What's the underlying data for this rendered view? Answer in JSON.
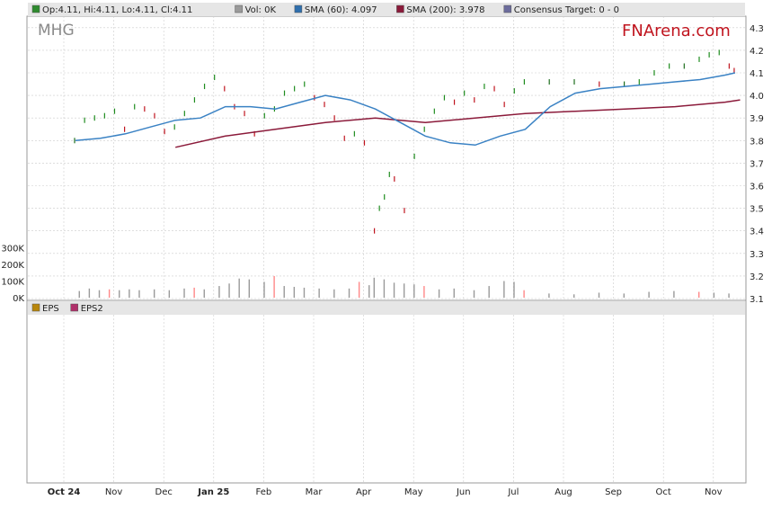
{
  "ticker": "MHG",
  "brand": "FNArena.com",
  "legend_top": [
    {
      "label": "Op:4.11, Hi:4.11, Lo:4.11, Cl:4.11",
      "color": "#2e8b2e"
    },
    {
      "label": "Vol: 0K",
      "color": "#9a9a9a"
    },
    {
      "label": "SMA (60): 4.097",
      "color": "#2f6fad"
    },
    {
      "label": "SMA (200): 3.978",
      "color": "#8b1a3a"
    },
    {
      "label": "Consensus Target: 0 - 0",
      "color": "#6c6c9c"
    }
  ],
  "legend_bottom": [
    {
      "label": "EPS",
      "color": "#b8860b"
    },
    {
      "label": "EPS2",
      "color": "#b0306a"
    }
  ],
  "colors": {
    "up": "#1e8c1e",
    "down": "#c0141e",
    "flat": "#1e6e1e",
    "sma60": "#3a82c4",
    "sma200": "#8b1a3a",
    "grid": "#cccccc",
    "legend_bg": "#e6e6e6",
    "brand": "#c0141e",
    "volume": "#9a9a9a"
  },
  "chart_data": {
    "type": "ohlc",
    "ticker": "MHG",
    "x_tick_labels": [
      "Oct 24",
      "Nov",
      "Dec",
      "Jan 25",
      "Feb",
      "Mar",
      "Apr",
      "May",
      "Jun",
      "Jul",
      "Aug",
      "Sep",
      "Oct",
      "Nov"
    ],
    "bold_ticks": [
      "Oct 24",
      "Jan 25"
    ],
    "y_price": {
      "min": 3.1,
      "max": 4.3,
      "ticks": [
        "4.3",
        "4.2",
        "4.1",
        "4.0",
        "3.9",
        "3.8",
        "3.7",
        "3.6",
        "3.5",
        "3.4",
        "3.3",
        "3.2",
        "3.1"
      ]
    },
    "y_volume": {
      "min": 0,
      "max": 300000,
      "ticks": [
        "300K",
        "200K",
        "100K",
        "0K"
      ]
    },
    "price_series": [
      {
        "m": 0.0,
        "v": 3.8
      },
      {
        "m": 0.2,
        "v": 3.89
      },
      {
        "m": 0.4,
        "v": 3.9
      },
      {
        "m": 0.6,
        "v": 3.91
      },
      {
        "m": 0.8,
        "v": 3.93
      },
      {
        "m": 1.0,
        "v": 3.85
      },
      {
        "m": 1.2,
        "v": 3.95
      },
      {
        "m": 1.4,
        "v": 3.94
      },
      {
        "m": 1.6,
        "v": 3.91
      },
      {
        "m": 1.8,
        "v": 3.84
      },
      {
        "m": 2.0,
        "v": 3.86
      },
      {
        "m": 2.2,
        "v": 3.92
      },
      {
        "m": 2.4,
        "v": 3.98
      },
      {
        "m": 2.6,
        "v": 4.04
      },
      {
        "m": 2.8,
        "v": 4.08
      },
      {
        "m": 3.0,
        "v": 4.03
      },
      {
        "m": 3.2,
        "v": 3.95
      },
      {
        "m": 3.4,
        "v": 3.92
      },
      {
        "m": 3.6,
        "v": 3.83
      },
      {
        "m": 3.8,
        "v": 3.91
      },
      {
        "m": 4.0,
        "v": 3.94
      },
      {
        "m": 4.2,
        "v": 4.01
      },
      {
        "m": 4.4,
        "v": 4.03
      },
      {
        "m": 4.6,
        "v": 4.05
      },
      {
        "m": 4.8,
        "v": 3.99
      },
      {
        "m": 5.0,
        "v": 3.96
      },
      {
        "m": 5.2,
        "v": 3.9
      },
      {
        "m": 5.4,
        "v": 3.81
      },
      {
        "m": 5.6,
        "v": 3.83
      },
      {
        "m": 5.8,
        "v": 3.79
      },
      {
        "m": 6.0,
        "v": 3.4
      },
      {
        "m": 6.1,
        "v": 3.5
      },
      {
        "m": 6.2,
        "v": 3.55
      },
      {
        "m": 6.3,
        "v": 3.65
      },
      {
        "m": 6.4,
        "v": 3.63
      },
      {
        "m": 6.6,
        "v": 3.49
      },
      {
        "m": 6.8,
        "v": 3.73
      },
      {
        "m": 7.0,
        "v": 3.85
      },
      {
        "m": 7.2,
        "v": 3.93
      },
      {
        "m": 7.4,
        "v": 3.99
      },
      {
        "m": 7.6,
        "v": 3.97
      },
      {
        "m": 7.8,
        "v": 4.01
      },
      {
        "m": 8.0,
        "v": 3.98
      },
      {
        "m": 8.2,
        "v": 4.04
      },
      {
        "m": 8.4,
        "v": 4.03
      },
      {
        "m": 8.6,
        "v": 3.96
      },
      {
        "m": 8.8,
        "v": 4.02
      },
      {
        "m": 9.0,
        "v": 4.06
      },
      {
        "m": 9.5,
        "v": 4.06
      },
      {
        "m": 10.0,
        "v": 4.06
      },
      {
        "m": 10.5,
        "v": 4.05
      },
      {
        "m": 11.0,
        "v": 4.05
      },
      {
        "m": 11.3,
        "v": 4.06
      },
      {
        "m": 11.6,
        "v": 4.1
      },
      {
        "m": 11.9,
        "v": 4.13
      },
      {
        "m": 12.2,
        "v": 4.13
      },
      {
        "m": 12.5,
        "v": 4.16
      },
      {
        "m": 12.7,
        "v": 4.18
      },
      {
        "m": 12.9,
        "v": 4.19
      },
      {
        "m": 13.1,
        "v": 4.13
      },
      {
        "m": 13.2,
        "v": 4.11
      }
    ],
    "sma60": [
      {
        "m": 0.0,
        "v": 3.8
      },
      {
        "m": 0.5,
        "v": 3.81
      },
      {
        "m": 1.0,
        "v": 3.83
      },
      {
        "m": 1.5,
        "v": 3.86
      },
      {
        "m": 2.0,
        "v": 3.89
      },
      {
        "m": 2.5,
        "v": 3.9
      },
      {
        "m": 3.0,
        "v": 3.95
      },
      {
        "m": 3.5,
        "v": 3.95
      },
      {
        "m": 4.0,
        "v": 3.94
      },
      {
        "m": 4.5,
        "v": 3.97
      },
      {
        "m": 5.0,
        "v": 4.0
      },
      {
        "m": 5.5,
        "v": 3.98
      },
      {
        "m": 6.0,
        "v": 3.94
      },
      {
        "m": 6.5,
        "v": 3.88
      },
      {
        "m": 7.0,
        "v": 3.82
      },
      {
        "m": 7.5,
        "v": 3.79
      },
      {
        "m": 8.0,
        "v": 3.78
      },
      {
        "m": 8.5,
        "v": 3.82
      },
      {
        "m": 9.0,
        "v": 3.85
      },
      {
        "m": 9.5,
        "v": 3.95
      },
      {
        "m": 10.0,
        "v": 4.01
      },
      {
        "m": 10.5,
        "v": 4.03
      },
      {
        "m": 11.0,
        "v": 4.04
      },
      {
        "m": 11.5,
        "v": 4.05
      },
      {
        "m": 12.0,
        "v": 4.06
      },
      {
        "m": 12.5,
        "v": 4.07
      },
      {
        "m": 13.0,
        "v": 4.09
      },
      {
        "m": 13.2,
        "v": 4.1
      }
    ],
    "sma200": [
      {
        "m": 2.0,
        "v": 3.77
      },
      {
        "m": 3.0,
        "v": 3.82
      },
      {
        "m": 4.0,
        "v": 3.85
      },
      {
        "m": 5.0,
        "v": 3.88
      },
      {
        "m": 6.0,
        "v": 3.9
      },
      {
        "m": 7.0,
        "v": 3.88
      },
      {
        "m": 8.0,
        "v": 3.9
      },
      {
        "m": 9.0,
        "v": 3.92
      },
      {
        "m": 10.0,
        "v": 3.93
      },
      {
        "m": 11.0,
        "v": 3.94
      },
      {
        "m": 12.0,
        "v": 3.95
      },
      {
        "m": 13.0,
        "v": 3.97
      },
      {
        "m": 13.3,
        "v": 3.98
      }
    ],
    "volume": [
      {
        "m": 0.1,
        "v": 40000
      },
      {
        "m": 0.3,
        "v": 55000
      },
      {
        "m": 0.5,
        "v": 45000
      },
      {
        "m": 0.7,
        "v": 50000
      },
      {
        "m": 0.9,
        "v": 45000
      },
      {
        "m": 1.1,
        "v": 50000
      },
      {
        "m": 1.3,
        "v": 45000
      },
      {
        "m": 1.6,
        "v": 50000
      },
      {
        "m": 1.9,
        "v": 45000
      },
      {
        "m": 2.2,
        "v": 55000
      },
      {
        "m": 2.4,
        "v": 60000
      },
      {
        "m": 2.6,
        "v": 50000
      },
      {
        "m": 2.9,
        "v": 70000
      },
      {
        "m": 3.1,
        "v": 85000
      },
      {
        "m": 3.3,
        "v": 115000
      },
      {
        "m": 3.5,
        "v": 110000
      },
      {
        "m": 3.8,
        "v": 95000
      },
      {
        "m": 4.0,
        "v": 130000
      },
      {
        "m": 4.2,
        "v": 70000
      },
      {
        "m": 4.4,
        "v": 65000
      },
      {
        "m": 4.6,
        "v": 60000
      },
      {
        "m": 4.9,
        "v": 55000
      },
      {
        "m": 5.2,
        "v": 50000
      },
      {
        "m": 5.5,
        "v": 55000
      },
      {
        "m": 5.7,
        "v": 95000
      },
      {
        "m": 5.9,
        "v": 75000
      },
      {
        "m": 6.0,
        "v": 120000
      },
      {
        "m": 6.2,
        "v": 110000
      },
      {
        "m": 6.4,
        "v": 90000
      },
      {
        "m": 6.6,
        "v": 85000
      },
      {
        "m": 6.8,
        "v": 80000
      },
      {
        "m": 7.0,
        "v": 70000
      },
      {
        "m": 7.3,
        "v": 50000
      },
      {
        "m": 7.6,
        "v": 55000
      },
      {
        "m": 8.0,
        "v": 45000
      },
      {
        "m": 8.3,
        "v": 70000
      },
      {
        "m": 8.6,
        "v": 100000
      },
      {
        "m": 8.8,
        "v": 95000
      },
      {
        "m": 9.0,
        "v": 45000
      },
      {
        "m": 9.5,
        "v": 25000
      },
      {
        "m": 10.0,
        "v": 20000
      },
      {
        "m": 10.5,
        "v": 30000
      },
      {
        "m": 11.0,
        "v": 25000
      },
      {
        "m": 11.5,
        "v": 35000
      },
      {
        "m": 12.0,
        "v": 40000
      },
      {
        "m": 12.5,
        "v": 35000
      },
      {
        "m": 12.8,
        "v": 30000
      },
      {
        "m": 13.1,
        "v": 25000
      }
    ]
  }
}
